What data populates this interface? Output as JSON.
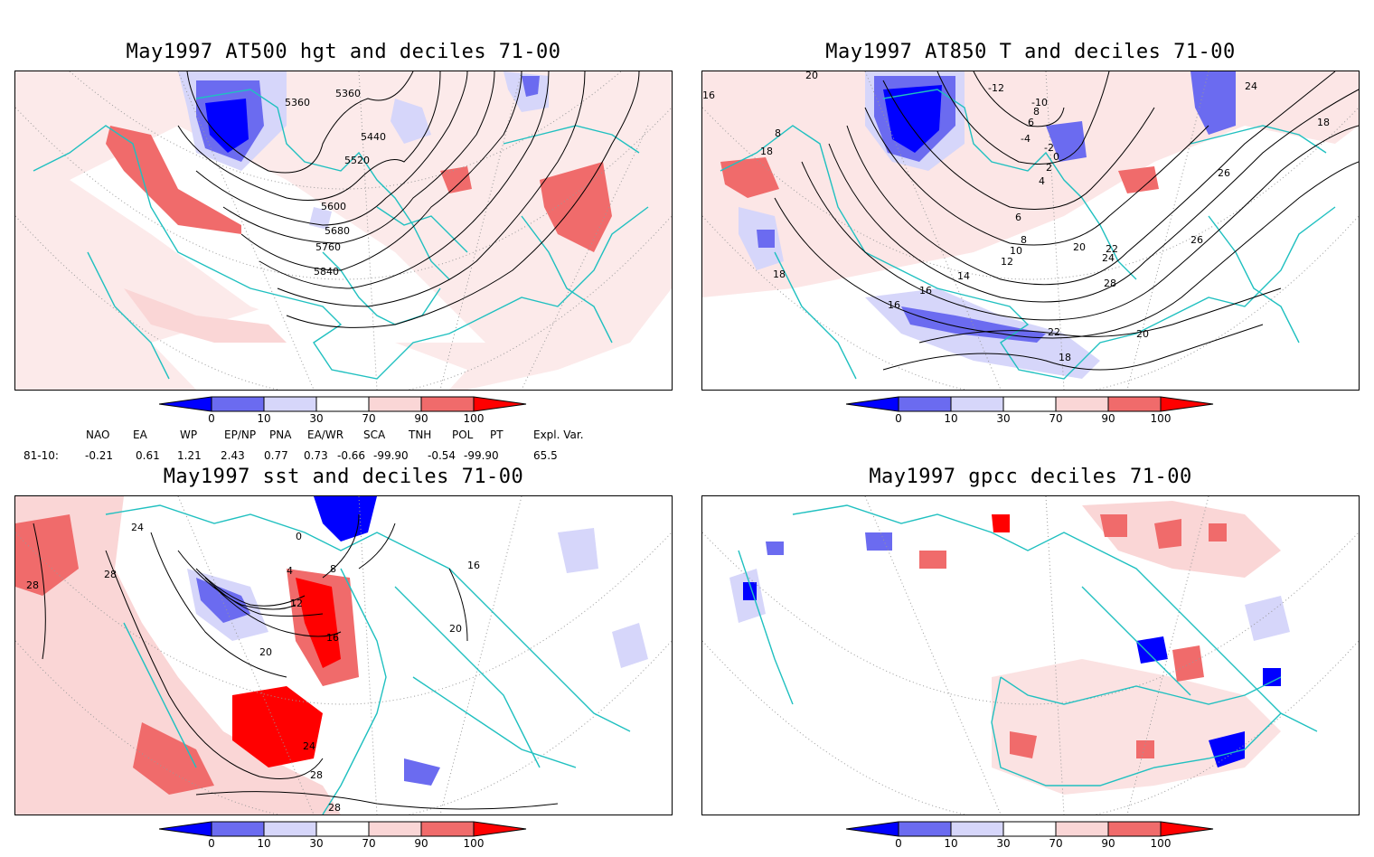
{
  "panels": [
    {
      "id": "p1",
      "title": "May1997 AT500 hgt and deciles 71-00",
      "contour_labels": [
        "5360",
        "5360",
        "5440",
        "5520",
        "5600",
        "5680",
        "5760",
        "5840"
      ]
    },
    {
      "id": "p2",
      "title": "May1997 AT850 T and deciles 71-00",
      "contour_labels": [
        "20",
        "18",
        "18",
        "16",
        "16",
        "14",
        "12",
        "10",
        "8",
        "8",
        "6",
        "4",
        "2",
        "0",
        "-2",
        "-4",
        "6",
        "8",
        "-10",
        "-12",
        "20",
        "22",
        "24",
        "26",
        "28",
        "22",
        "20",
        "18",
        "16",
        "24",
        "26",
        "18"
      ]
    },
    {
      "id": "p3",
      "title": "May1997 sst and deciles 71-00",
      "contour_labels": [
        "28",
        "28",
        "24",
        "0",
        "4",
        "8",
        "12",
        "16",
        "16",
        "20",
        "20",
        "24",
        "28",
        "28"
      ]
    },
    {
      "id": "p4",
      "title": "May1997 gpcc deciles 71-00",
      "contour_labels": []
    }
  ],
  "colorbar": {
    "ticks": [
      "0",
      "10",
      "30",
      "70",
      "90",
      "100"
    ],
    "colors": [
      "#0000ff",
      "#6b6bf0",
      "#d6d6fa",
      "#ffffff",
      "#fad6d6",
      "#f06b6b",
      "#ff0000"
    ]
  },
  "indices": {
    "row_label": "81-10:",
    "columns": [
      {
        "name": "NAO",
        "value": "-0.21"
      },
      {
        "name": "EA",
        "value": "0.61"
      },
      {
        "name": "WP",
        "value": "1.21"
      },
      {
        "name": "EP/NP",
        "value": "2.43"
      },
      {
        "name": "PNA",
        "value": "0.77"
      },
      {
        "name": "EA/WR",
        "value": "0.73"
      },
      {
        "name": "SCA",
        "value": "-0.66"
      },
      {
        "name": "TNH",
        "value": "-99.90"
      },
      {
        "name": "POL",
        "value": "-0.54"
      },
      {
        "name": "PT",
        "value": "-99.90"
      },
      {
        "name": "Expl. Var.",
        "value": "65.5"
      }
    ]
  }
}
